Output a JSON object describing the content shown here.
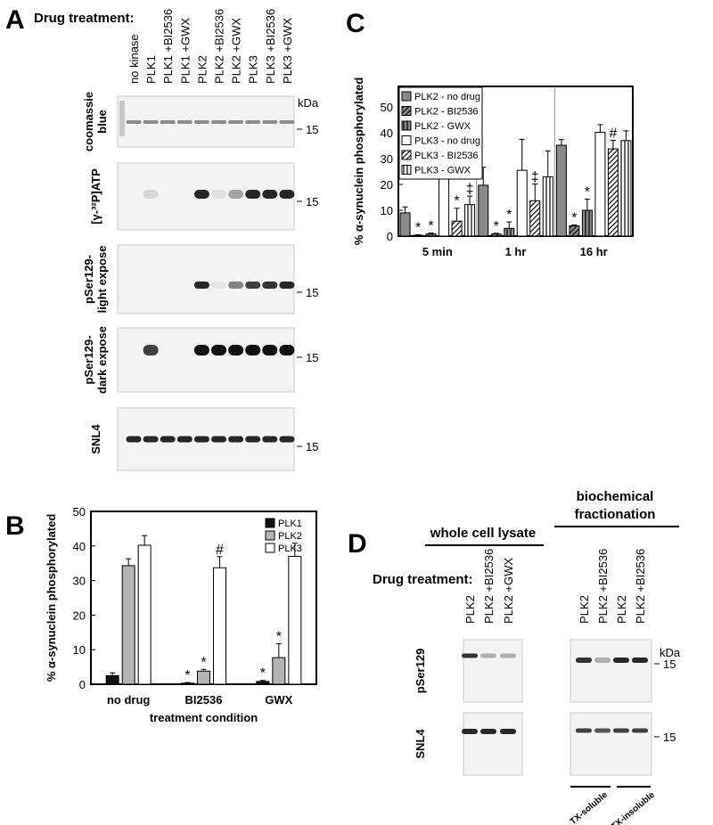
{
  "panel_a": {
    "letter": "A",
    "drug_treatment_label": "Drug treatment:",
    "kda_label": "kDa",
    "lanes": [
      "no kinase",
      "PLK1",
      "PLK1 +BI2536",
      "PLK1 +GWX",
      "PLK2",
      "PLK2 +BI2536",
      "PLK2 +GWX",
      "PLK3",
      "PLK3 +BI2536",
      "PLK3 +GWX"
    ],
    "rows": [
      {
        "label": [
          "coomassie",
          "blue"
        ],
        "size_marker": "15"
      },
      {
        "label": [
          "[γ-³²P]ATP"
        ],
        "size_marker": "15"
      },
      {
        "label": [
          "pSer129-",
          "light expose"
        ],
        "size_marker": "15"
      },
      {
        "label": [
          "pSer129-",
          "dark expose"
        ],
        "size_marker": "15"
      },
      {
        "label": [
          "SNL4"
        ],
        "size_marker": "15"
      }
    ]
  },
  "chart_data": [
    {
      "type": "bar",
      "panel_label": "B",
      "xlabel": "treatment condition",
      "ylabel": "% α-synuclein phosphorylated",
      "categories": [
        "no drug",
        "BI2536",
        "GWX"
      ],
      "ylim": [
        0,
        50
      ],
      "yticks": [
        0,
        10,
        20,
        30,
        40,
        50
      ],
      "legend": "upper right",
      "group_separators": false,
      "series": [
        {
          "name": "PLK1",
          "color": "#111111",
          "pattern": null,
          "values": [
            2.5,
            0.3,
            0.8
          ],
          "errors": [
            0.8,
            0.2,
            0.3
          ],
          "markers": [
            null,
            "*",
            "*"
          ]
        },
        {
          "name": "PLK2",
          "color": "#b4b4b4",
          "pattern": null,
          "values": [
            34.3,
            3.8,
            7.7
          ],
          "errors": [
            2.0,
            0.5,
            4.0
          ],
          "markers": [
            null,
            "*",
            "*"
          ]
        },
        {
          "name": "PLK3",
          "color": "#ffffff",
          "pattern": null,
          "values": [
            40.2,
            33.7,
            37.0
          ],
          "errors": [
            2.8,
            3.2,
            3.8
          ],
          "markers": [
            null,
            "#",
            null
          ]
        }
      ]
    },
    {
      "type": "bar",
      "panel_label": "C",
      "ylabel": "% α-synuclein phosphorylated",
      "categories": [
        "5 min",
        "1 hr",
        "16 hr"
      ],
      "ylim": [
        0,
        58
      ],
      "yticks": [
        0,
        10,
        20,
        30,
        40,
        50
      ],
      "legend": "upper left",
      "group_separators": true,
      "series": [
        {
          "name": "PLK2 - no drug",
          "color": "#8a8a8a",
          "pattern": null,
          "values": [
            9.0,
            19.7,
            35.2
          ],
          "errors": [
            2.3,
            7.0,
            2.2
          ],
          "markers": [
            null,
            null,
            null
          ]
        },
        {
          "name": "PLK2 - BI2536",
          "color": "#8a8a8a",
          "pattern": "diagonal",
          "values": [
            0.3,
            0.8,
            4.0
          ],
          "errors": [
            0.2,
            0.3,
            0.3
          ],
          "markers": [
            "*",
            "*",
            "*"
          ]
        },
        {
          "name": "PLK2 - GWX",
          "color": "#8a8a8a",
          "pattern": "vertical",
          "values": [
            0.8,
            3.0,
            10.0
          ],
          "errors": [
            0.4,
            2.5,
            4.3
          ],
          "markers": [
            "*",
            "*",
            "*"
          ]
        },
        {
          "name": "PLK3 - no drug",
          "color": "#ffffff",
          "pattern": null,
          "values": [
            22.3,
            25.5,
            40.2
          ],
          "errors": [
            10.5,
            12.0,
            3.0
          ],
          "markers": [
            null,
            null,
            null
          ]
        },
        {
          "name": "PLK3 - BI2536",
          "color": "#ffffff",
          "pattern": "diagonal",
          "values": [
            5.8,
            13.7,
            33.8
          ],
          "errors": [
            5.0,
            6.5,
            3.3
          ],
          "markers": [
            "*",
            "‡",
            "#"
          ]
        },
        {
          "name": "PLK3 - GWX",
          "color": "#ffffff",
          "pattern": "vertical",
          "values": [
            12.2,
            23.0,
            37.0
          ],
          "errors": [
            3.3,
            10.0,
            3.8
          ],
          "markers": [
            "‡",
            null,
            null
          ]
        }
      ]
    }
  ],
  "panel_d": {
    "letter": "D",
    "drug_treatment_label": "Drug treatment:",
    "kda_label": "kDa",
    "groups": [
      {
        "title": [
          "whole cell lysate"
        ],
        "lanes": [
          "PLK2",
          "PLK2 +BI2536",
          "PLK2 +GWX"
        ]
      },
      {
        "title": [
          "biochemical",
          "fractionation"
        ],
        "lanes": [
          "PLK2",
          "PLK2 +BI2536",
          "PLK2",
          "PLK2 +BI2536"
        ],
        "fractions": [
          "TX-soluble",
          "TX-insoluble"
        ]
      }
    ],
    "rows": [
      {
        "label": [
          "pSer129"
        ],
        "size_marker": "15"
      },
      {
        "label": [
          "SNL4"
        ],
        "size_marker": "15"
      }
    ]
  }
}
